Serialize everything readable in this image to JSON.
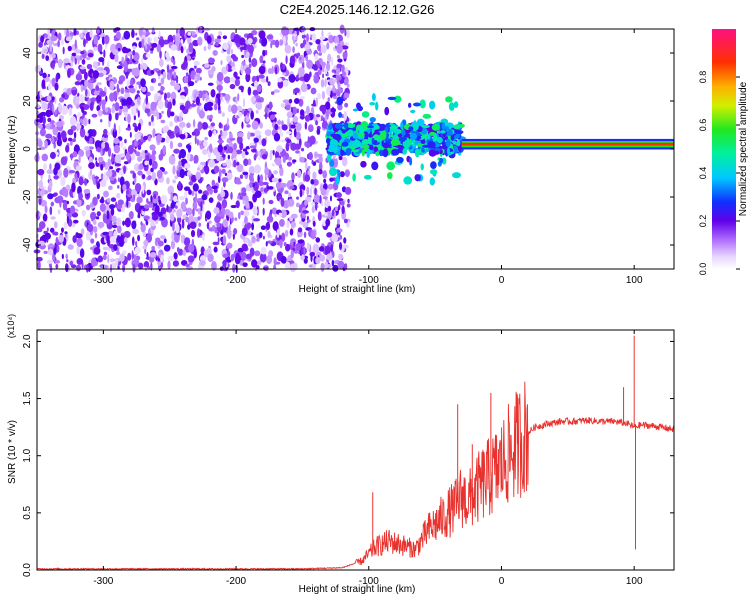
{
  "title": "C2E4.2025.146.12.12.G26",
  "chart_data": [
    {
      "type": "heatmap",
      "xlabel": "Height of straight line (km)",
      "ylabel": "Frequency (Hz)",
      "xlim": [
        -350,
        130
      ],
      "ylim": [
        -50,
        50
      ],
      "x_ticks": [
        -300,
        -200,
        -100,
        0,
        100
      ],
      "y_ticks": [
        -40,
        -20,
        0,
        20,
        40
      ],
      "colorbar": {
        "label": "Normalized spectral amplitude",
        "range": [
          0,
          1
        ],
        "ticks": [
          0.0,
          0.2,
          0.4,
          0.6,
          0.8
        ]
      },
      "regions": [
        {
          "x_range": [
            -350,
            -115
          ],
          "freq_range": [
            -50,
            50
          ],
          "amplitude": "low",
          "pattern": "scattered noise"
        },
        {
          "x_range": [
            -130,
            -30
          ],
          "freq_center": 4,
          "freq_spread": 6,
          "amplitude": "medium"
        },
        {
          "x_range": [
            -30,
            130
          ],
          "freq_center": 2,
          "freq_spread": 1,
          "amplitude": "high"
        }
      ]
    },
    {
      "type": "line",
      "xlabel": "Height of straight line (km)",
      "ylabel": "SNR (10 * v/v)",
      "y_multiplier": "(x10⁴)",
      "xlim": [
        -350,
        130
      ],
      "ylim": [
        0,
        2.1
      ],
      "x_ticks": [
        -300,
        -200,
        -100,
        0,
        100
      ],
      "y_ticks": [
        0.0,
        0.5,
        1.0,
        1.5,
        2.0
      ],
      "color": "#e8322e",
      "x": [
        -350,
        -300,
        -250,
        -200,
        -150,
        -120,
        -105,
        -95,
        -85,
        -75,
        -65,
        -55,
        -45,
        -35,
        -30,
        -25,
        -15,
        -5,
        5,
        15,
        25,
        35,
        45,
        55,
        65,
        75,
        85,
        95,
        100,
        105,
        115,
        130
      ],
      "y": [
        0.01,
        0.01,
        0.01,
        0.01,
        0.01,
        0.02,
        0.08,
        0.2,
        0.25,
        0.22,
        0.18,
        0.35,
        0.45,
        0.55,
        0.65,
        0.6,
        0.75,
        0.85,
        1.0,
        1.15,
        1.25,
        1.28,
        1.3,
        1.3,
        1.31,
        1.3,
        1.3,
        1.28,
        1.25,
        1.27,
        1.26,
        1.23
      ],
      "spikes": [
        {
          "x": -97,
          "y": 0.68
        },
        {
          "x": -33,
          "y": 1.45
        },
        {
          "x": -22,
          "y": 1.1
        },
        {
          "x": -8,
          "y": 1.55
        },
        {
          "x": 12,
          "y": 1.48
        },
        {
          "x": 92,
          "y": 1.6
        },
        {
          "x": 100,
          "y": 2.05
        },
        {
          "x": 101,
          "y": 0.18
        }
      ]
    }
  ]
}
